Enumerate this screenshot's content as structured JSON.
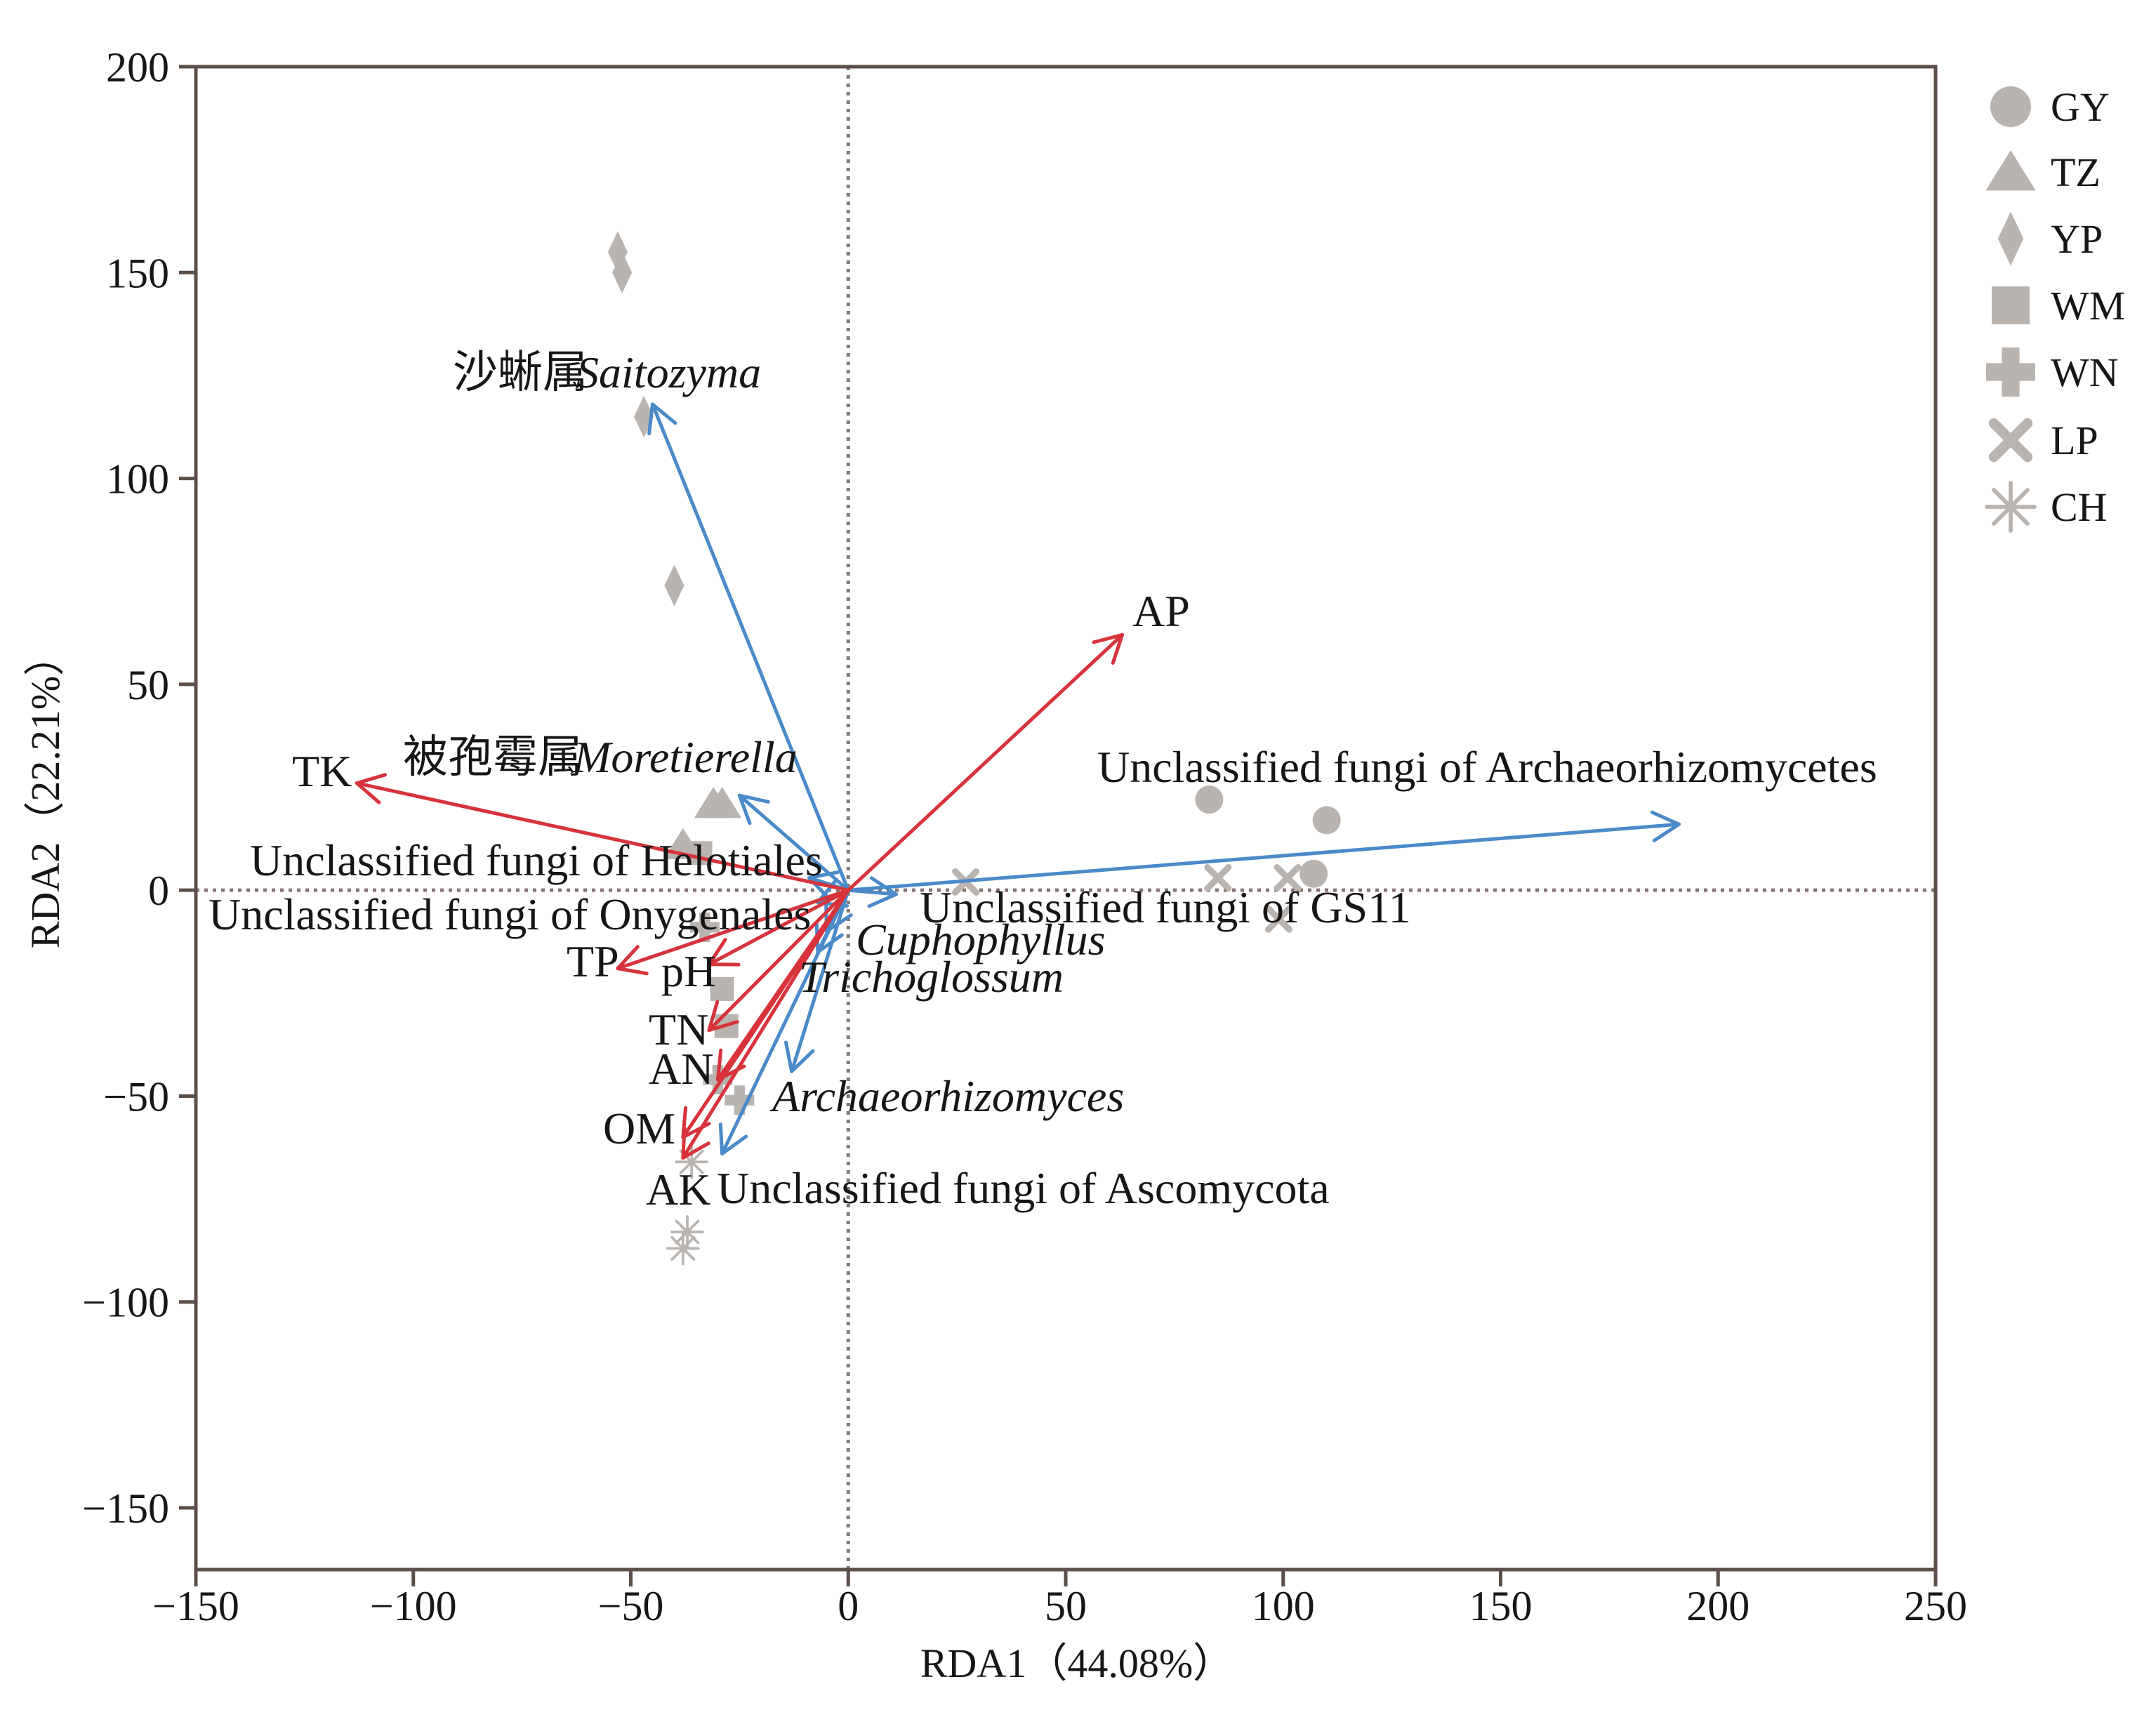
{
  "chart_data": {
    "type": "scatter",
    "xlabel": "RDA1（44.08%）",
    "ylabel": "RDA2（22.21%）",
    "xlim": [
      -150,
      250
    ],
    "ylim": [
      -165,
      200
    ],
    "xticks": [
      -150,
      -100,
      -50,
      0,
      50,
      100,
      150,
      200,
      250
    ],
    "xtick_labels": [
      "−150",
      "−100",
      "−50",
      "0",
      "50",
      "100",
      "150",
      "200",
      "250"
    ],
    "yticks": [
      200,
      150,
      100,
      50,
      0,
      -50,
      -100,
      -150
    ],
    "ytick_labels": [
      "200",
      "150",
      "100",
      "50",
      "0",
      "−50",
      "−100",
      "−150"
    ],
    "grid": false,
    "reference_lines": {
      "x": 0,
      "y": 0,
      "style": "dotted",
      "color": "#857670"
    },
    "axis_color": "#5c4f4a",
    "point_color": "#bab4b0",
    "legend": {
      "position": "right"
    },
    "series": [
      {
        "name": "GY",
        "marker": "circle",
        "points": [
          [
            83,
            22
          ],
          [
            110,
            17
          ],
          [
            107,
            4
          ]
        ]
      },
      {
        "name": "TZ",
        "marker": "triangle",
        "points": [
          [
            -31,
            21
          ],
          [
            -29,
            21
          ],
          [
            -38,
            11
          ]
        ]
      },
      {
        "name": "YP",
        "marker": "diamond",
        "points": [
          [
            -53,
            155
          ],
          [
            -52,
            150
          ],
          [
            -47,
            115
          ],
          [
            -40,
            74
          ]
        ]
      },
      {
        "name": "WM",
        "marker": "square",
        "points": [
          [
            -34,
            9
          ],
          [
            -29,
            -24
          ],
          [
            -28,
            -33
          ]
        ]
      },
      {
        "name": "WN",
        "marker": "plus",
        "points": [
          [
            -33,
            -9
          ],
          [
            -25,
            -51
          ],
          [
            -30,
            -46
          ]
        ]
      },
      {
        "name": "LP",
        "marker": "cross",
        "points": [
          [
            85,
            3
          ],
          [
            101,
            3
          ],
          [
            99,
            -7
          ],
          [
            27,
            2
          ]
        ]
      },
      {
        "name": "CH",
        "marker": "asterisk",
        "points": [
          [
            -37,
            -83
          ],
          [
            -38,
            -87
          ],
          [
            -36,
            -66
          ]
        ]
      }
    ],
    "vectors": {
      "taxa": {
        "color": "#4a8ac9",
        "items": [
          {
            "label": "沙蜥属",
            "label_italic": "Saitozyma",
            "x": -45,
            "y": 118
          },
          {
            "label": "被孢霉属",
            "label_italic": "Moretierella",
            "x": -25,
            "y": 23
          },
          {
            "label": "Unclassified fungi of Archaeorhizomycetes",
            "x": 191,
            "y": 16
          },
          {
            "label": "Unclassified fungi of GS11",
            "x": 11,
            "y": -1
          },
          {
            "label": "Unclassified fungi of Helotiales",
            "x": -9,
            "y": 3
          },
          {
            "label": "Unclassified fungi of Onygenales",
            "x": -7,
            "y": -3
          },
          {
            "label_italic": "Cuphophyllus",
            "x": -5,
            "y": -10
          },
          {
            "label_italic": "Trichoglossum",
            "x": -7,
            "y": -15
          },
          {
            "label_italic": "Archaeorhizomyces",
            "x": -13,
            "y": -44
          },
          {
            "label": "Unclassified fungi of Ascomycota",
            "x": -29,
            "y": -64
          }
        ]
      },
      "environmental": {
        "color": "#d8333b",
        "items": [
          {
            "label": "AP",
            "x": 63,
            "y": 62
          },
          {
            "label": "TK",
            "x": -113,
            "y": 26
          },
          {
            "label": "TP",
            "x": -53,
            "y": -19
          },
          {
            "label": "pH",
            "x": -32,
            "y": -18
          },
          {
            "label": "TN",
            "x": -32,
            "y": -34
          },
          {
            "label": "AN",
            "x": -30,
            "y": -46
          },
          {
            "label": "OM",
            "x": -38,
            "y": -60
          },
          {
            "label": "AK",
            "x": -38,
            "y": -65
          }
        ]
      }
    }
  }
}
